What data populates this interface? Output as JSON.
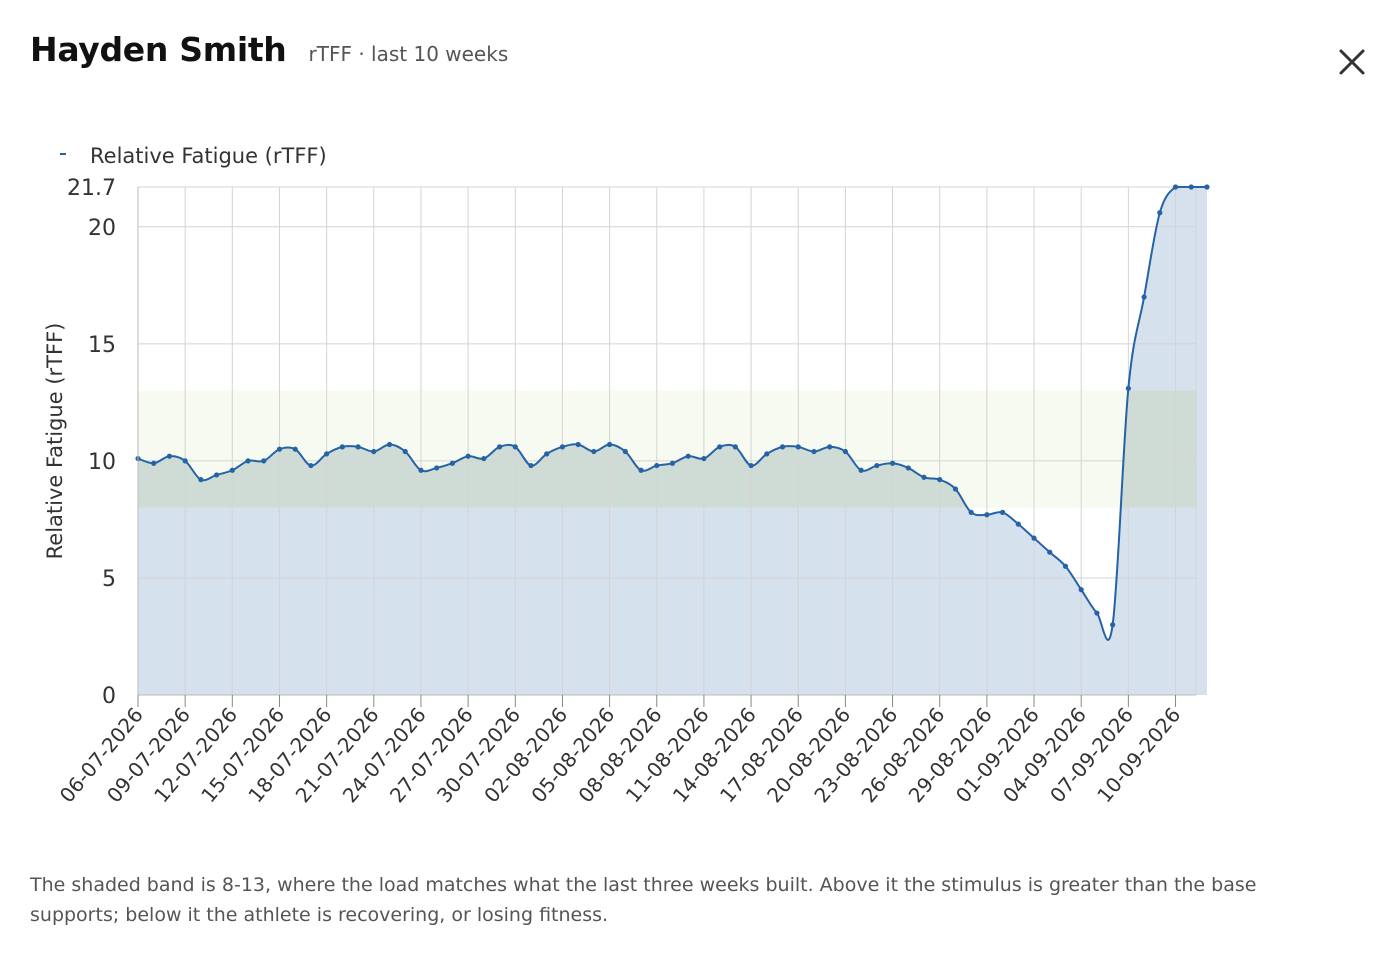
{
  "header": {
    "athlete_name": "Hayden Smith",
    "subtitle": "rTFF · last 10 weeks"
  },
  "close_label": "close",
  "footnote": "The shaded band is 8-13, where the load matches what the last three weeks built. Above it the stimulus is greater than the base supports; below it the athlete is recovering, or losing fitness.",
  "colors": {
    "line": "#2563a6",
    "area": "#d5e1ed",
    "band": "#eef5e4",
    "band_overlap": "#cfdcd5",
    "grid": "#d4d4d4"
  },
  "chart_data": {
    "type": "area",
    "title": "",
    "xlabel": "",
    "ylabel": "Relative Fatigue (rTFF)",
    "ylim": [
      0,
      21.7
    ],
    "yticks": [
      0,
      5,
      10,
      15,
      20,
      21.7
    ],
    "ytick_labels": [
      "0",
      "5",
      "10",
      "15",
      "20",
      "21.7"
    ],
    "xtick_labels": [
      "06-07-2026",
      "09-07-2026",
      "12-07-2026",
      "15-07-2026",
      "18-07-2026",
      "21-07-2026",
      "24-07-2026",
      "27-07-2026",
      "30-07-2026",
      "02-08-2026",
      "05-08-2026",
      "08-08-2026",
      "11-08-2026",
      "14-08-2026",
      "17-08-2026",
      "20-08-2026",
      "23-08-2026",
      "26-08-2026",
      "29-08-2026",
      "01-09-2026",
      "04-09-2026",
      "07-09-2026",
      "10-09-2026"
    ],
    "band": [
      8,
      13
    ],
    "legend": {
      "label": "Relative Fatigue (rTFF)",
      "position": "top-left"
    },
    "grid": true,
    "series": [
      {
        "name": "Relative Fatigue (rTFF)",
        "start_date": "06-07-2026",
        "values": [
          10.1,
          9.9,
          10.2,
          10.0,
          9.2,
          9.4,
          9.6,
          10.0,
          10.0,
          10.5,
          10.5,
          9.8,
          10.3,
          10.6,
          10.6,
          10.4,
          10.7,
          10.4,
          9.6,
          9.7,
          9.9,
          10.2,
          10.1,
          10.6,
          10.6,
          9.8,
          10.3,
          10.6,
          10.7,
          10.4,
          10.7,
          10.4,
          9.6,
          9.8,
          9.9,
          10.2,
          10.1,
          10.6,
          10.6,
          9.8,
          10.3,
          10.6,
          10.6,
          10.4,
          10.6,
          10.4,
          9.6,
          9.8,
          9.9,
          9.7,
          9.3,
          9.2,
          8.8,
          7.8,
          7.7,
          7.8,
          7.3,
          6.7,
          6.1,
          5.5,
          4.5,
          3.5,
          3.0,
          13.1,
          17.0,
          20.6,
          21.7,
          21.7,
          21.7
        ]
      }
    ]
  }
}
